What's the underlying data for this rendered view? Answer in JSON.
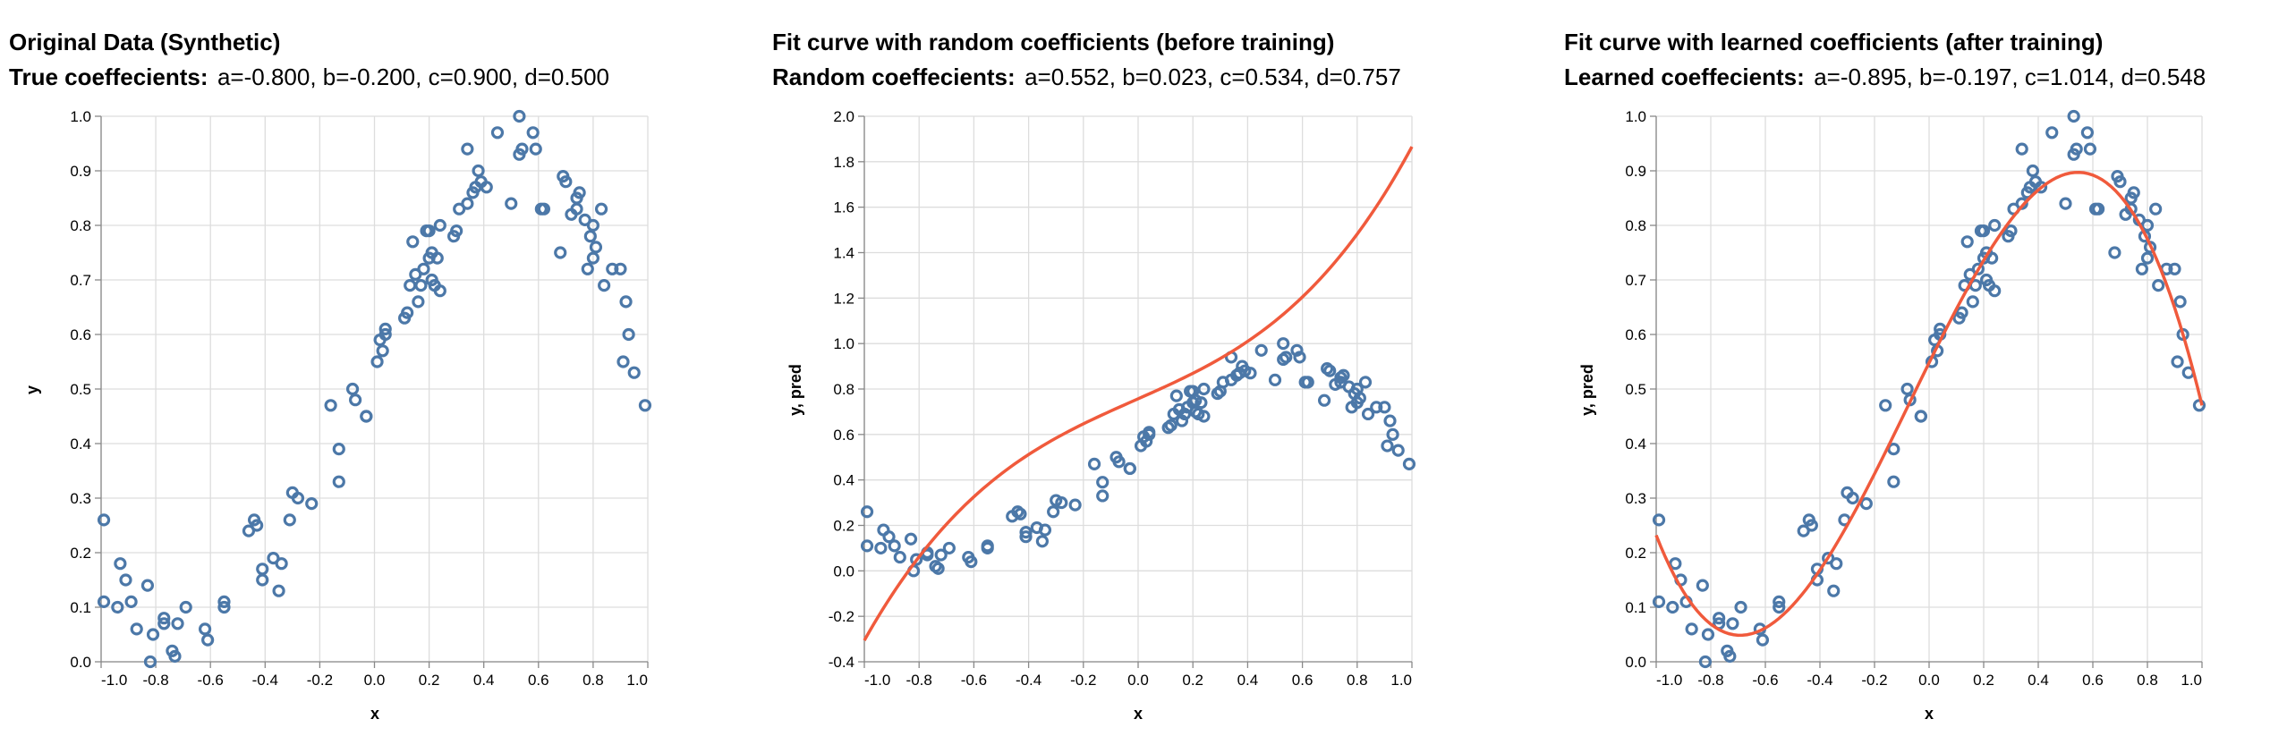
{
  "colors": {
    "points": "#4c78a8",
    "fit": "#f05a3c"
  },
  "panels": [
    {
      "title": "Original Data (Synthetic)",
      "subtitle_bold": "True coeffecients:",
      "subtitle_values": "a=-0.800, b=-0.200, c=0.900, d=0.500",
      "xlabel": "x",
      "ylabel": "y"
    },
    {
      "title": "Fit curve with random coefficients (before training)",
      "subtitle_bold": "Random coeffecients:",
      "subtitle_values": "a=0.552, b=0.023, c=0.534, d=0.757",
      "xlabel": "x",
      "ylabel": "y, pred"
    },
    {
      "title": "Fit curve with learned coefficients (after training)",
      "subtitle_bold": "Learned coeffecients:",
      "subtitle_values": "a=-0.895, b=-0.197, c=1.014, d=0.548",
      "xlabel": "x",
      "ylabel": "y, pred"
    }
  ],
  "chart_data": [
    {
      "type": "scatter",
      "title": "Original Data (Synthetic)",
      "xlabel": "x",
      "ylabel": "y",
      "xlim": [
        -1.0,
        1.0
      ],
      "ylim": [
        0.0,
        1.0
      ],
      "xticks": [
        "-1.0",
        "-0.8",
        "-0.6",
        "-0.4",
        "-0.2",
        "0.0",
        "0.2",
        "0.4",
        "0.6",
        "0.8",
        "1.0"
      ],
      "yticks": [
        "0.0",
        "0.1",
        "0.2",
        "0.3",
        "0.4",
        "0.5",
        "0.6",
        "0.7",
        "0.8",
        "0.9",
        "1.0"
      ],
      "grid": true,
      "points": [
        [
          -0.99,
          0.26
        ],
        [
          -0.99,
          0.11
        ],
        [
          -0.94,
          0.1
        ],
        [
          -0.93,
          0.18
        ],
        [
          -0.91,
          0.15
        ],
        [
          -0.89,
          0.11
        ],
        [
          -0.87,
          0.06
        ],
        [
          -0.83,
          0.14
        ],
        [
          -0.82,
          0.0
        ],
        [
          -0.81,
          0.05
        ],
        [
          -0.77,
          0.07
        ],
        [
          -0.77,
          0.08
        ],
        [
          -0.74,
          0.02
        ],
        [
          -0.73,
          0.01
        ],
        [
          -0.72,
          0.07
        ],
        [
          -0.69,
          0.1
        ],
        [
          -0.62,
          0.06
        ],
        [
          -0.61,
          0.04
        ],
        [
          -0.55,
          0.1
        ],
        [
          -0.55,
          0.11
        ],
        [
          -0.46,
          0.24
        ],
        [
          -0.44,
          0.26
        ],
        [
          -0.43,
          0.25
        ],
        [
          -0.41,
          0.17
        ],
        [
          -0.41,
          0.15
        ],
        [
          -0.37,
          0.19
        ],
        [
          -0.35,
          0.13
        ],
        [
          -0.34,
          0.18
        ],
        [
          -0.31,
          0.26
        ],
        [
          -0.3,
          0.31
        ],
        [
          -0.28,
          0.3
        ],
        [
          -0.23,
          0.29
        ],
        [
          -0.16,
          0.47
        ],
        [
          -0.13,
          0.39
        ],
        [
          -0.13,
          0.33
        ],
        [
          -0.08,
          0.5
        ],
        [
          -0.07,
          0.48
        ],
        [
          -0.03,
          0.45
        ],
        [
          -0.03,
          0.45
        ],
        [
          0.01,
          0.55
        ],
        [
          0.02,
          0.59
        ],
        [
          0.03,
          0.57
        ],
        [
          0.04,
          0.6
        ],
        [
          0.04,
          0.61
        ],
        [
          0.11,
          0.63
        ],
        [
          0.12,
          0.64
        ],
        [
          0.13,
          0.69
        ],
        [
          0.14,
          0.77
        ],
        [
          0.15,
          0.71
        ],
        [
          0.16,
          0.66
        ],
        [
          0.17,
          0.69
        ],
        [
          0.18,
          0.72
        ],
        [
          0.19,
          0.79
        ],
        [
          0.2,
          0.79
        ],
        [
          0.2,
          0.74
        ],
        [
          0.21,
          0.7
        ],
        [
          0.21,
          0.75
        ],
        [
          0.22,
          0.69
        ],
        [
          0.23,
          0.74
        ],
        [
          0.24,
          0.8
        ],
        [
          0.24,
          0.68
        ],
        [
          0.29,
          0.78
        ],
        [
          0.3,
          0.79
        ],
        [
          0.31,
          0.83
        ],
        [
          0.34,
          0.84
        ],
        [
          0.34,
          0.94
        ],
        [
          0.36,
          0.86
        ],
        [
          0.37,
          0.87
        ],
        [
          0.38,
          0.9
        ],
        [
          0.39,
          0.88
        ],
        [
          0.41,
          0.87
        ],
        [
          0.45,
          0.97
        ],
        [
          0.5,
          0.84
        ],
        [
          0.53,
          1.0
        ],
        [
          0.53,
          0.93
        ],
        [
          0.54,
          0.94
        ],
        [
          0.58,
          0.97
        ],
        [
          0.59,
          0.94
        ],
        [
          0.61,
          0.83
        ],
        [
          0.62,
          0.83
        ],
        [
          0.68,
          0.75
        ],
        [
          0.69,
          0.89
        ],
        [
          0.7,
          0.88
        ],
        [
          0.72,
          0.82
        ],
        [
          0.74,
          0.83
        ],
        [
          0.74,
          0.85
        ],
        [
          0.75,
          0.86
        ],
        [
          0.77,
          0.81
        ],
        [
          0.78,
          0.72
        ],
        [
          0.79,
          0.78
        ],
        [
          0.8,
          0.74
        ],
        [
          0.8,
          0.8
        ],
        [
          0.81,
          0.76
        ],
        [
          0.83,
          0.83
        ],
        [
          0.84,
          0.69
        ],
        [
          0.87,
          0.72
        ],
        [
          0.9,
          0.72
        ],
        [
          0.91,
          0.55
        ],
        [
          0.92,
          0.66
        ],
        [
          0.93,
          0.6
        ],
        [
          0.95,
          0.53
        ],
        [
          0.99,
          0.47
        ]
      ]
    },
    {
      "type": "scatter+line",
      "title": "Fit curve with random coefficients (before training)",
      "xlabel": "x",
      "ylabel": "y, pred",
      "xlim": [
        -1.0,
        1.0
      ],
      "ylim": [
        -0.4,
        2.0
      ],
      "xticks": [
        "-1.0",
        "-0.8",
        "-0.6",
        "-0.4",
        "-0.2",
        "0.0",
        "0.2",
        "0.4",
        "0.6",
        "0.8",
        "1.0"
      ],
      "yticks": [
        "-0.4",
        "-0.2",
        "0.0",
        "0.2",
        "0.4",
        "0.6",
        "0.8",
        "1.0",
        "1.2",
        "1.4",
        "1.6",
        "1.8",
        "2.0"
      ],
      "grid": true,
      "curve": {
        "a": 0.552,
        "b": 0.023,
        "c": 0.534,
        "d": 0.757
      },
      "points": "same as panel 1"
    },
    {
      "type": "scatter+line",
      "title": "Fit curve with learned coefficients (after training)",
      "xlabel": "x",
      "ylabel": "y, pred",
      "xlim": [
        -1.0,
        1.0
      ],
      "ylim": [
        0.0,
        1.0
      ],
      "xticks": [
        "-1.0",
        "-0.8",
        "-0.6",
        "-0.4",
        "-0.2",
        "0.0",
        "0.2",
        "0.4",
        "0.6",
        "0.8",
        "1.0"
      ],
      "yticks": [
        "0.0",
        "0.1",
        "0.2",
        "0.3",
        "0.4",
        "0.5",
        "0.6",
        "0.7",
        "0.8",
        "0.9",
        "1.0"
      ],
      "grid": true,
      "curve": {
        "a": -0.895,
        "b": -0.197,
        "c": 1.014,
        "d": 0.548
      },
      "points": "same as panel 1"
    }
  ]
}
